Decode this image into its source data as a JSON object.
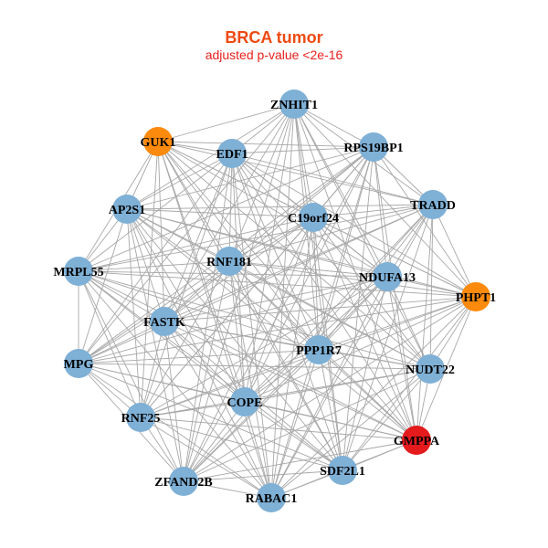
{
  "header": {
    "title": "BRCA tumor",
    "subtitle": "adjusted p-value <2e-16"
  },
  "colors": {
    "default": "#7fb0d6",
    "highlight_orange": "#fb8a0d",
    "highlight_red": "#e41a1c",
    "edge": "#a8a8a8"
  },
  "nodes": [
    {
      "label": "ZNHIT1",
      "color": "#7fb0d6"
    },
    {
      "label": "GUK1",
      "color": "#fb8a0d"
    },
    {
      "label": "EDF1",
      "color": "#7fb0d6"
    },
    {
      "label": "RPS19BP1",
      "color": "#7fb0d6"
    },
    {
      "label": "TRADD",
      "color": "#7fb0d6"
    },
    {
      "label": "AP2S1",
      "color": "#7fb0d6"
    },
    {
      "label": "C19orf24",
      "color": "#7fb0d6"
    },
    {
      "label": "RNF181",
      "color": "#7fb0d6"
    },
    {
      "label": "MRPL55",
      "color": "#7fb0d6"
    },
    {
      "label": "NDUFA13",
      "color": "#7fb0d6"
    },
    {
      "label": "PHPT1",
      "color": "#fb8a0d"
    },
    {
      "label": "FASTK",
      "color": "#7fb0d6"
    },
    {
      "label": "PPP1R7",
      "color": "#7fb0d6"
    },
    {
      "label": "MPG",
      "color": "#7fb0d6"
    },
    {
      "label": "NUDT22",
      "color": "#7fb0d6"
    },
    {
      "label": "COPE",
      "color": "#7fb0d6"
    },
    {
      "label": "RNF25",
      "color": "#7fb0d6"
    },
    {
      "label": "GMPPA",
      "color": "#e41a1c"
    },
    {
      "label": "SDF2L1",
      "color": "#7fb0d6"
    },
    {
      "label": "ZFAND2B",
      "color": "#7fb0d6"
    },
    {
      "label": "RABAC1",
      "color": "#7fb0d6"
    }
  ],
  "edges_upper": [
    [
      1,
      2,
      3,
      4,
      5,
      6,
      7,
      9,
      10,
      11,
      12,
      13,
      14,
      15,
      17,
      18,
      19,
      20
    ],
    [
      2,
      3,
      4,
      5,
      6,
      7,
      8,
      9,
      10,
      11,
      12,
      14,
      15,
      16,
      17,
      18,
      20
    ],
    [
      3,
      4,
      5,
      6,
      7,
      8,
      9,
      10,
      11,
      12,
      13,
      14,
      15,
      16,
      17,
      18,
      19,
      20
    ],
    [
      4,
      5,
      6,
      7,
      8,
      9,
      10,
      11,
      12,
      13,
      15,
      16,
      17,
      18,
      19,
      20
    ],
    [
      5,
      6,
      7,
      8,
      9,
      10,
      11,
      12,
      13,
      14,
      15,
      17,
      18,
      19,
      20
    ],
    [
      6,
      7,
      8,
      9,
      10,
      11,
      12,
      13,
      14,
      15,
      16,
      17,
      18,
      19,
      20
    ],
    [
      7,
      8,
      9,
      10,
      11,
      12,
      13,
      14,
      15,
      16,
      17,
      18,
      19,
      20
    ],
    [
      8,
      9,
      10,
      11,
      12,
      13,
      14,
      15,
      16,
      17,
      18,
      19,
      20
    ],
    [
      9,
      10,
      11,
      12,
      13,
      14,
      15,
      16,
      17,
      18,
      19,
      20
    ],
    [
      10,
      11,
      12,
      13,
      14,
      15,
      16,
      17,
      18,
      19,
      20
    ],
    [
      11,
      12,
      13,
      14,
      15,
      16,
      17,
      18,
      19,
      20
    ],
    [
      12,
      13,
      14,
      15,
      16,
      17,
      18,
      19,
      20
    ],
    [
      13,
      14,
      15,
      16,
      17,
      18,
      19,
      20
    ],
    [
      14,
      15,
      16,
      17,
      18,
      19,
      20
    ],
    [
      15,
      16,
      17,
      18,
      19,
      20
    ],
    [
      16,
      17,
      18,
      19,
      20
    ],
    [
      17,
      18,
      19,
      20
    ],
    [
      18,
      19,
      20
    ],
    [
      19,
      20
    ],
    [
      20
    ],
    []
  ]
}
